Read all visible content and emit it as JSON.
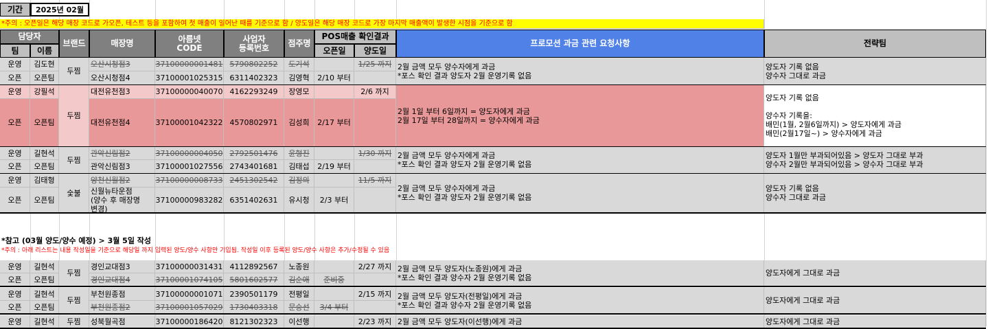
{
  "period": {
    "label": "기간",
    "value": "2025년 02월"
  },
  "notice": "*주의 : 오픈일은 해당 매장 코드로 가오픈, 테스트 등을 포함하여 첫 매출이 일어난 때를 기준으로 함 / 양도일은 해당 매장 코드로 가장 마지막 매출액이 발생한 시점을 기준으로 함",
  "headers": {
    "manager": "담당자",
    "team": "팀",
    "name": "이름",
    "brand": "브랜드",
    "store": "매장명",
    "code_1": "아름넷",
    "code_2": "CODE",
    "biz_1": "사업자",
    "biz_2": "등록번호",
    "owner": "점주명",
    "pos": "POS매출 확인결과",
    "open": "오픈일",
    "transfer": "양도일",
    "request": "프로모션 과금 관련 요청사항",
    "strategy": "전략팀"
  },
  "groups": [
    {
      "brand": "두찜",
      "rows": [
        {
          "team": "운영",
          "name": "김도현",
          "store": "오산시청점3",
          "code": "37100000001481",
          "biz": "5790802252",
          "owner": "도기석",
          "open": "",
          "transfer": "1/25 까지",
          "strike": true
        },
        {
          "team": "오픈",
          "name": "오픈팀",
          "store": "오산시청점4",
          "code": "37100001025315",
          "biz": "6311402323",
          "owner": "김영혁",
          "open": "2/10 부터",
          "transfer": "",
          "strike": false
        }
      ],
      "request": [
        "2월 금액 모두 양수자에게 과금",
        "*포스 확인 결과 양도자 2월 운영기록 없음"
      ],
      "strategy": [
        "양도자 기록 없음",
        "양수자 그대로 과금"
      ]
    },
    {
      "brand": "두찜",
      "rows": [
        {
          "team": "운영",
          "name": "강필석",
          "store": "대전유천점3",
          "code": "37100000040070",
          "biz": "4162293249",
          "owner": "장영모",
          "open": "",
          "transfer": "2/6 까지",
          "strike": false
        },
        {
          "team": "오픈",
          "name": "오픈팀",
          "store": "대전유천점4",
          "code": "37100001042322",
          "biz": "4570802971",
          "owner": "김성희",
          "open": "2/17 부터",
          "transfer": "",
          "strike": false
        }
      ],
      "request": [
        "2월 1일 부터 6일까지 = 양도자에게 과금",
        "2월 17일 부터 28일까지 = 양수자에게 과금"
      ],
      "strategy": [
        "양도자 기록 없음",
        "",
        "양수자 기록을:",
        "배민(1월, 2월6일까지) > 양도자에게 과금",
        "배민(2월17일~) > 양수자에게 과금"
      ]
    },
    {
      "brand": "두찜",
      "rows": [
        {
          "team": "운영",
          "name": "길현석",
          "store": "관악신림점2",
          "code": "37100000004050",
          "biz": "2792501476",
          "owner": "윤형진",
          "open": "",
          "transfer": "1/30 까지",
          "strike": true
        },
        {
          "team": "오픈",
          "name": "오픈팀",
          "store": "관악신림점3",
          "code": "37100001027556",
          "biz": "2743401681",
          "owner": "김태섭",
          "open": "2/19 부터",
          "transfer": "",
          "strike": false
        }
      ],
      "request": [
        "2월 금액 모두 양수자에게 과금",
        "*포스 확인 결과 양도자 2월 운영기록 없음"
      ],
      "strategy": [
        "양도자 1월만 부과되어있음 > 양도자 그대로 부과",
        "양수자 2월만 부과되어있음 > 양수자 그대로 부과"
      ]
    },
    {
      "brand": "숯불",
      "rows": [
        {
          "team": "운영",
          "name": "김태형",
          "store": "양천신월점2",
          "code": "37100000008733",
          "biz": "2451302542",
          "owner": "김정의",
          "open": "",
          "transfer": "11/5 까지",
          "strike": true
        },
        {
          "team": "오픈",
          "name": "오픈팀",
          "store": "신월뉴타운점\n(양수 후 매장명\n변경)",
          "code": "37100000983282",
          "biz": "6351402631",
          "owner": "유시청",
          "open": "2/3 부터",
          "transfer": "",
          "strike": false
        }
      ],
      "request": [
        "2월 금액 모두 양수자에게 과금",
        "*포스 확인 결과 양도자 2월 운영기록 없음"
      ],
      "strategy": [
        "양도자 기록 없음",
        "양수자 그대로 과금"
      ]
    }
  ],
  "ref_title": "*참고 (03월 양도/양수 예정) > 3월 5일 작성",
  "ref_notice": "*주의 : 아래 리스트는 내용 작성일을 기준으로 해당일 까지 입력된 양도/양수 사항만 기입됨. 작성일 이후 등록된 양도/양수 사항은 추가/수정될 수 있음",
  "ref_groups": [
    {
      "brand": "두찜",
      "rows": [
        {
          "team": "운영",
          "name": "길현석",
          "store": "경인교대점3",
          "code": "37100000031431",
          "biz": "4112892567",
          "owner": "노종원",
          "open": "",
          "transfer": "2/27 까지",
          "strike": false
        },
        {
          "team": "오픈",
          "name": "오픈팀",
          "store": "경인교대점4",
          "code": "37100001074105",
          "biz": "5801602577",
          "owner": "김순애",
          "open": "준비중",
          "transfer": "",
          "strike": true
        }
      ],
      "request": [
        "2월 금액 모두 양도자(노종원)에게 과금",
        "*포스 확인 결과 양수자 2월 운영기록 없음"
      ],
      "strategy": [
        "양도자에게 그대로 과금"
      ]
    },
    {
      "brand": "두찜",
      "rows": [
        {
          "team": "운영",
          "name": "길현석",
          "store": "부천원종점",
          "code": "37100000001071",
          "biz": "2390501179",
          "owner": "전평일",
          "open": "",
          "transfer": "2/15 까지",
          "strike": false
        },
        {
          "team": "오픈",
          "name": "오픈팀",
          "store": "부천원종점2",
          "code": "37100001057029",
          "biz": "1730403318",
          "owner": "문승선",
          "open": "3/4 부터",
          "transfer": "",
          "strike": true
        }
      ],
      "request": [
        "2월 금액 모두 양도자(전평일)에게 과금",
        "*포스 확인 결과 양수자 2월 운영기록 없음"
      ],
      "strategy": [
        "양도자에게 그대로 과금"
      ]
    },
    {
      "brand": "두찜",
      "rows": [
        {
          "team": "운영",
          "name": "길현석",
          "store": "성북월곡점",
          "code": "37100000186420",
          "biz": "8121302323",
          "owner": "이선행",
          "open": "",
          "transfer": "2/23 까지",
          "strike": false
        }
      ],
      "request": [
        "2월 금액 모두 양도자(이선행)에게 과금"
      ],
      "strategy": [
        "양도자에게 그대로 과금"
      ]
    }
  ]
}
